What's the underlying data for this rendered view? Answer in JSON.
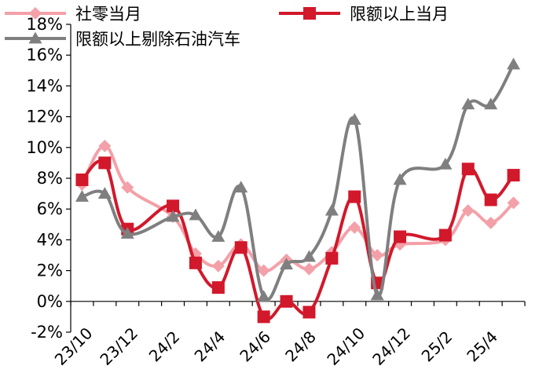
{
  "chart_data": {
    "type": "line",
    "title": "",
    "xlabel": "",
    "ylabel": "",
    "ylim": [
      -2,
      18
    ],
    "y_ticks": [
      -2,
      0,
      2,
      4,
      6,
      8,
      10,
      12,
      14,
      16,
      18
    ],
    "y_tick_labels": [
      "-2%",
      "0%",
      "2%",
      "4%",
      "6%",
      "8%",
      "10%",
      "12%",
      "14%",
      "16%",
      "18%"
    ],
    "x_tick_labels": [
      {
        "label": "23/10",
        "index": 0
      },
      {
        "label": "23/12",
        "index": 2
      },
      {
        "label": "24/2",
        "index": 4
      },
      {
        "label": "24/4",
        "index": 6
      },
      {
        "label": "24/6",
        "index": 8
      },
      {
        "label": "24/8",
        "index": 10
      },
      {
        "label": "24/10",
        "index": 12
      },
      {
        "label": "24/12",
        "index": 14
      },
      {
        "label": "25/2",
        "index": 16
      },
      {
        "label": "25/4",
        "index": 18
      }
    ],
    "legend_placement": "top",
    "grid": false,
    "series": [
      {
        "name": "社零当月",
        "color": "#f4a0a8",
        "marker": "diamond",
        "x": [
          0,
          1,
          2,
          4,
          5,
          6,
          7,
          8,
          9,
          10,
          11,
          12,
          13,
          14,
          16,
          17,
          18,
          19
        ],
        "values": [
          7.6,
          10.1,
          7.4,
          5.5,
          3.1,
          2.3,
          3.7,
          2.0,
          2.7,
          2.1,
          3.2,
          4.8,
          3.0,
          3.7,
          4.0,
          5.9,
          5.1,
          6.4
        ]
      },
      {
        "name": "限额以上当月",
        "color": "#d2182b",
        "marker": "square",
        "x": [
          0,
          1,
          2,
          4,
          5,
          6,
          7,
          8,
          9,
          10,
          11,
          12,
          13,
          14,
          16,
          17,
          18,
          19
        ],
        "values": [
          7.9,
          9.0,
          4.7,
          6.2,
          2.5,
          0.9,
          3.5,
          -1.0,
          0.0,
          -0.7,
          2.8,
          6.8,
          1.2,
          4.2,
          4.3,
          8.6,
          6.6,
          8.2
        ]
      },
      {
        "name": "限额以上剔除石油汽车",
        "color": "#7f7f7f",
        "marker": "triangle",
        "x": [
          0,
          1,
          2,
          4,
          5,
          6,
          7,
          8,
          9,
          10,
          11,
          12,
          13,
          14,
          16,
          17,
          18,
          19
        ],
        "values": [
          6.8,
          7.0,
          4.4,
          5.5,
          5.6,
          4.2,
          7.4,
          0.3,
          2.4,
          2.9,
          5.9,
          11.8,
          0.4,
          7.9,
          8.9,
          12.8,
          12.8,
          15.4
        ]
      }
    ]
  }
}
